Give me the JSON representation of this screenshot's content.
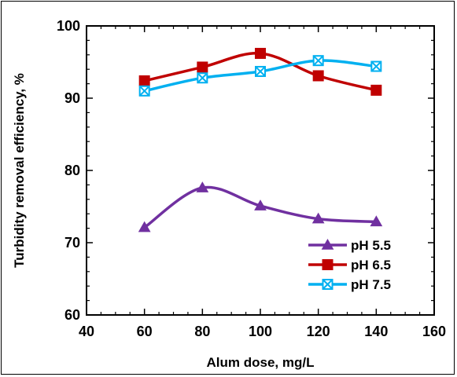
{
  "chart_data": {
    "type": "line",
    "xlabel": "Alum dose, mg/L",
    "ylabel": "Turbidity removal efficiency, %",
    "xlim": [
      40,
      160
    ],
    "ylim": [
      60,
      100
    ],
    "xticks": [
      40,
      60,
      80,
      100,
      120,
      140,
      160
    ],
    "yticks": [
      60,
      70,
      80,
      90,
      100
    ],
    "grid": false,
    "legend_position": "bottom-right",
    "x": [
      60,
      80,
      100,
      120,
      140
    ],
    "series": [
      {
        "name": "pH 5.5",
        "values": [
          72.1,
          77.6,
          75.1,
          73.3,
          72.9
        ],
        "color": "#7030A0",
        "marker": "triangle"
      },
      {
        "name": "pH 6.5",
        "values": [
          92.4,
          94.3,
          96.2,
          93.1,
          91.1
        ],
        "color": "#C00000",
        "marker": "square"
      },
      {
        "name": "pH 7.5",
        "values": [
          91.0,
          92.8,
          93.7,
          95.2,
          94.4
        ],
        "color": "#00B0F0",
        "marker": "x-square"
      }
    ]
  }
}
